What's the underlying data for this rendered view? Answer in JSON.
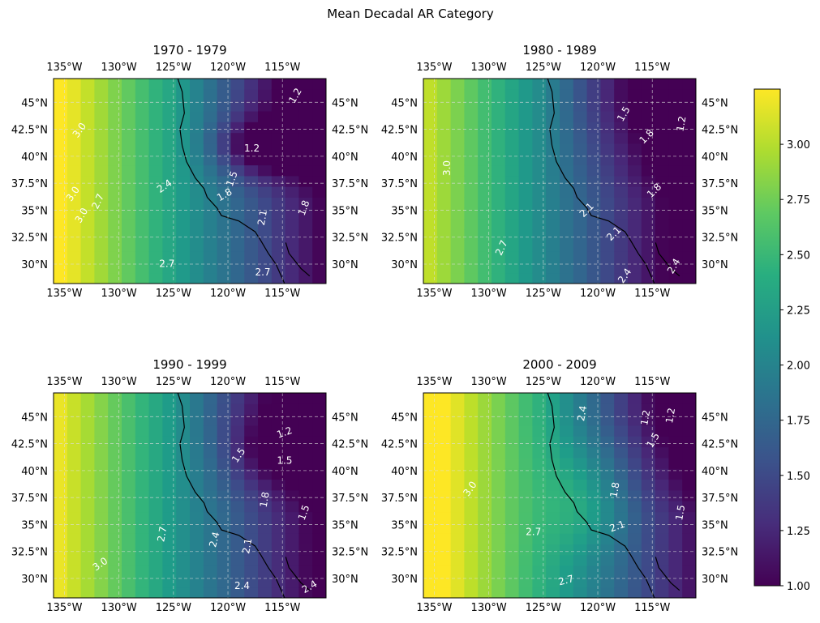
{
  "figure": {
    "title": "Mean Decadal AR Category"
  },
  "chart_data": {
    "type": "heatmap",
    "title": "Mean Decadal AR Category",
    "colormap": "viridis",
    "colorbar": {
      "range": [
        1.0,
        3.25
      ],
      "ticks": [
        1.0,
        1.25,
        1.5,
        1.75,
        2.0,
        2.25,
        2.5,
        2.75,
        3.0
      ],
      "tick_labels": [
        "1.00",
        "1.25",
        "1.50",
        "1.75",
        "2.00",
        "2.25",
        "2.50",
        "2.75",
        "3.00"
      ]
    },
    "lon_range": [
      -136,
      -111
    ],
    "lat_range": [
      28.2,
      47.2
    ],
    "lon_ticks": [
      -135,
      -130,
      -125,
      -120,
      -115
    ],
    "lon_tick_labels": [
      "135°W",
      "130°W",
      "125°W",
      "120°W",
      "115°W"
    ],
    "lat_ticks": [
      30,
      32.5,
      35,
      37.5,
      40,
      42.5,
      45
    ],
    "lat_tick_labels": [
      "30°N",
      "32.5°N",
      "35°N",
      "37.5°N",
      "40°N",
      "42.5°N",
      "45°N"
    ],
    "grid": true,
    "contour_levels": [
      1.2,
      1.5,
      1.8,
      2.1,
      2.4,
      2.7,
      3.0
    ],
    "panels": [
      {
        "title": "1970 - 1979",
        "contour_labels": [
          {
            "text": "3.0",
            "lon": -133.6,
            "lat": 42.4,
            "rot": -55
          },
          {
            "text": "3.0",
            "lon": -134.2,
            "lat": 36.5,
            "rot": -55
          },
          {
            "text": "3.0",
            "lon": -133.4,
            "lat": 34.5,
            "rot": -60
          },
          {
            "text": "2.7",
            "lon": -131.9,
            "lat": 35.8,
            "rot": -65
          },
          {
            "text": "2.4",
            "lon": -125.8,
            "lat": 37.2,
            "rot": -35
          },
          {
            "text": "2.7",
            "lon": -125.6,
            "lat": 30.0,
            "rot": 0
          },
          {
            "text": "2.7",
            "lon": -116.8,
            "lat": 29.2,
            "rot": 0
          },
          {
            "text": "1.2",
            "lon": -117.8,
            "lat": 40.7,
            "rot": 0
          },
          {
            "text": "1.2",
            "lon": -113.8,
            "lat": 45.6,
            "rot": -60
          },
          {
            "text": "1.5",
            "lon": -119.6,
            "lat": 37.9,
            "rot": -70
          },
          {
            "text": "1.8",
            "lon": -120.3,
            "lat": 36.4,
            "rot": -30
          },
          {
            "text": "2.1",
            "lon": -116.8,
            "lat": 34.3,
            "rot": -80
          },
          {
            "text": "1.8",
            "lon": -113.0,
            "lat": 35.2,
            "rot": -70
          }
        ]
      },
      {
        "title": "1980 - 1989",
        "contour_labels": [
          {
            "text": "3.0",
            "lon": -133.8,
            "lat": 38.9,
            "rot": -90
          },
          {
            "text": "2.7",
            "lon": -128.8,
            "lat": 31.5,
            "rot": -65
          },
          {
            "text": "2.1",
            "lon": -121.0,
            "lat": 35.0,
            "rot": -45
          },
          {
            "text": "2.1",
            "lon": -118.5,
            "lat": 32.8,
            "rot": -45
          },
          {
            "text": "2.4",
            "lon": -117.5,
            "lat": 28.9,
            "rot": -55
          },
          {
            "text": "2.4",
            "lon": -113.0,
            "lat": 29.8,
            "rot": -60
          },
          {
            "text": "1.5",
            "lon": -117.6,
            "lat": 43.9,
            "rot": -60
          },
          {
            "text": "1.8",
            "lon": -115.5,
            "lat": 41.8,
            "rot": -45
          },
          {
            "text": "1.2",
            "lon": -112.3,
            "lat": 43.0,
            "rot": -80
          },
          {
            "text": "1.8",
            "lon": -114.8,
            "lat": 36.8,
            "rot": -45
          }
        ]
      },
      {
        "title": "1990 - 1999",
        "contour_labels": [
          {
            "text": "3.0",
            "lon": -131.7,
            "lat": 31.3,
            "rot": -35
          },
          {
            "text": "2.7",
            "lon": -126.0,
            "lat": 34.1,
            "rot": -80
          },
          {
            "text": "2.4",
            "lon": -121.2,
            "lat": 33.6,
            "rot": -75
          },
          {
            "text": "2.4",
            "lon": -118.7,
            "lat": 29.3,
            "rot": 0
          },
          {
            "text": "2.1",
            "lon": -118.2,
            "lat": 33.0,
            "rot": -80
          },
          {
            "text": "1.5",
            "lon": -119.0,
            "lat": 41.4,
            "rot": -55
          },
          {
            "text": "1.8",
            "lon": -116.6,
            "lat": 37.3,
            "rot": -80
          },
          {
            "text": "1.2",
            "lon": -114.8,
            "lat": 43.5,
            "rot": -20
          },
          {
            "text": "1.5",
            "lon": -114.8,
            "lat": 40.9,
            "rot": 0
          },
          {
            "text": "1.5",
            "lon": -113.0,
            "lat": 36.1,
            "rot": -70
          },
          {
            "text": "2.4",
            "lon": -112.5,
            "lat": 29.2,
            "rot": -30
          }
        ]
      },
      {
        "title": "2000 - 2009",
        "contour_labels": [
          {
            "text": "3.0",
            "lon": -131.7,
            "lat": 38.3,
            "rot": -55
          },
          {
            "text": "2.7",
            "lon": -125.9,
            "lat": 34.3,
            "rot": 0
          },
          {
            "text": "2.7",
            "lon": -122.9,
            "lat": 29.8,
            "rot": -15
          },
          {
            "text": "2.4",
            "lon": -121.4,
            "lat": 45.3,
            "rot": -80
          },
          {
            "text": "2.1",
            "lon": -118.2,
            "lat": 34.8,
            "rot": -20
          },
          {
            "text": "1.8",
            "lon": -118.4,
            "lat": 38.2,
            "rot": -80
          },
          {
            "text": "1.2",
            "lon": -115.6,
            "lat": 44.9,
            "rot": -80
          },
          {
            "text": "1.5",
            "lon": -114.9,
            "lat": 42.8,
            "rot": -60
          },
          {
            "text": "1.2",
            "lon": -113.3,
            "lat": 45.1,
            "rot": -80
          },
          {
            "text": "1.5",
            "lon": -112.4,
            "lat": 36.1,
            "rot": -80
          }
        ]
      }
    ]
  }
}
